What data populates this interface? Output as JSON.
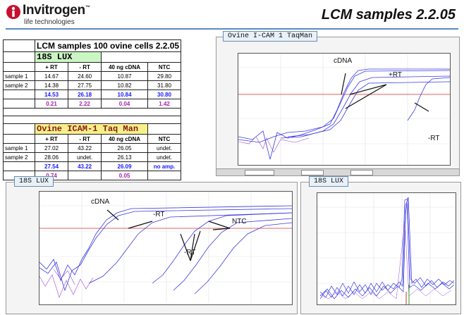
{
  "brand": {
    "name": "Invitrogen",
    "tagline": "life technologies",
    "trademark": "™"
  },
  "slide_title": "LCM samples 2.2.05",
  "table_header": "LCM samples  100 ovine cells  2.2.05",
  "lux": {
    "label": "18S LUX",
    "columns": [
      "",
      "+ RT",
      "- RT",
      "40 ng cDNA",
      "NTC"
    ],
    "rows": [
      {
        "label": "sample 1",
        "cells": [
          "14.67",
          "24.60",
          "10.87",
          "29.80"
        ]
      },
      {
        "label": "sample 2",
        "cells": [
          "14.38",
          "27.75",
          "10.82",
          "31.80"
        ]
      }
    ],
    "avg": [
      "14.53",
      "26.18",
      "10.84",
      "30.80"
    ],
    "sd": [
      "0.21",
      "2.22",
      "0.04",
      "1.42"
    ]
  },
  "icam": {
    "label": "Ovine ICAM-1  Taq Man",
    "columns": [
      "",
      "+ RT",
      "- RT",
      "40 ng cDNA",
      "NTC"
    ],
    "rows": [
      {
        "label": "sample 1",
        "cells": [
          "27.02",
          "43.22",
          "26.05",
          "undet."
        ]
      },
      {
        "label": "sample 2",
        "cells": [
          "28.06",
          "undet.",
          "26.13",
          "undet."
        ]
      }
    ],
    "avg": [
      "27.54",
      "43.22",
      "26.09",
      "no amp."
    ],
    "sd": [
      "0.74",
      "",
      "0.05",
      ""
    ]
  },
  "panels": {
    "icam": {
      "tab": "Ovine I-CAM 1 TaqMan",
      "ann_cdna": "cDNA",
      "ann_rt": "+RT",
      "ann_nrt": "-RT"
    },
    "lux_amp": {
      "tab": "18S LUX",
      "ann_cdna": "cDNA",
      "ann_rt": "-RT",
      "ann_ntc": "NTC",
      "ann_nrt": "-RT"
    },
    "lux_melt": {
      "tab": "18S LUX"
    }
  },
  "colors": {
    "curve": "#3a3ae0",
    "curve2": "#9a4ad0",
    "threshold": "#d03030",
    "accent_rule": "#5a8abf"
  }
}
